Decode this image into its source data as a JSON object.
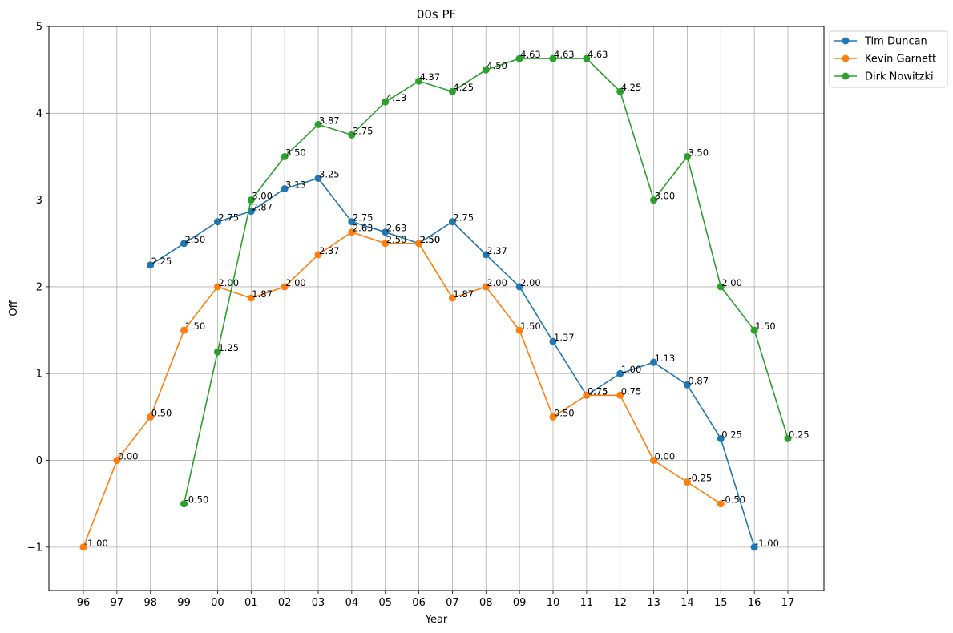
{
  "chart_data": {
    "type": "line",
    "title": "00s PF",
    "xlabel": "Year",
    "ylabel": "Off",
    "categories": [
      "96",
      "97",
      "98",
      "99",
      "00",
      "01",
      "02",
      "03",
      "04",
      "05",
      "06",
      "07",
      "08",
      "09",
      "10",
      "11",
      "12",
      "13",
      "14",
      "15",
      "16",
      "17"
    ],
    "ylim": [
      -1.5,
      5
    ],
    "yticks": [
      -1,
      0,
      1,
      2,
      3,
      4,
      5
    ],
    "ytick_labels": [
      "−1",
      "0",
      "1",
      "2",
      "3",
      "4",
      "5"
    ],
    "grid": true,
    "legend_position": "upper-right-outside",
    "series": [
      {
        "name": "Tim Duncan",
        "color": "#1f77b4",
        "values": [
          null,
          null,
          2.25,
          2.5,
          2.75,
          2.87,
          3.13,
          3.25,
          2.75,
          2.63,
          2.5,
          2.75,
          2.37,
          2.0,
          1.37,
          0.75,
          1.0,
          1.13,
          0.87,
          0.25,
          -1.0,
          null
        ],
        "labels": [
          null,
          null,
          "2.25",
          "2.50",
          "2.75",
          "2.87",
          "3.13",
          "3.25",
          "2.75",
          "2.63",
          "2.50",
          "2.75",
          "2.37",
          "2.00",
          "1.37",
          "0.75",
          "1.00",
          "1.13",
          "0.87",
          "0.25",
          "-1.00",
          null
        ]
      },
      {
        "name": "Kevin Garnett",
        "color": "#ff7f0e",
        "values": [
          -1.0,
          0.0,
          0.5,
          1.5,
          2.0,
          1.87,
          2.0,
          2.37,
          2.63,
          2.5,
          2.5,
          1.87,
          2.0,
          1.5,
          0.5,
          0.75,
          0.75,
          0.0,
          -0.25,
          -0.5,
          null,
          null
        ],
        "labels": [
          "-1.00",
          "0.00",
          "0.50",
          "1.50",
          "2.00",
          "1.87",
          "2.00",
          "2.37",
          "2.63",
          "2.50",
          "2.50",
          "1.87",
          "2.00",
          "1.50",
          "0.50",
          "0.75",
          "0.75",
          "0.00",
          "-0.25",
          "-0.50",
          null,
          null
        ]
      },
      {
        "name": "Dirk Nowitzki",
        "color": "#2ca02c",
        "values": [
          null,
          null,
          null,
          -0.5,
          1.25,
          3.0,
          3.5,
          3.87,
          3.75,
          4.13,
          4.37,
          4.25,
          4.5,
          4.63,
          4.63,
          4.63,
          4.25,
          3.0,
          3.5,
          2.0,
          1.5,
          0.25
        ],
        "labels": [
          null,
          null,
          null,
          "-0.50",
          "1.25",
          "3.00",
          "3.50",
          "3.87",
          "3.75",
          "4.13",
          "4.37",
          "4.25",
          "4.50",
          "4.63",
          "4.63",
          "4.63",
          "4.25",
          "3.00",
          "3.50",
          "2.00",
          "1.50",
          "0.25"
        ]
      }
    ]
  }
}
